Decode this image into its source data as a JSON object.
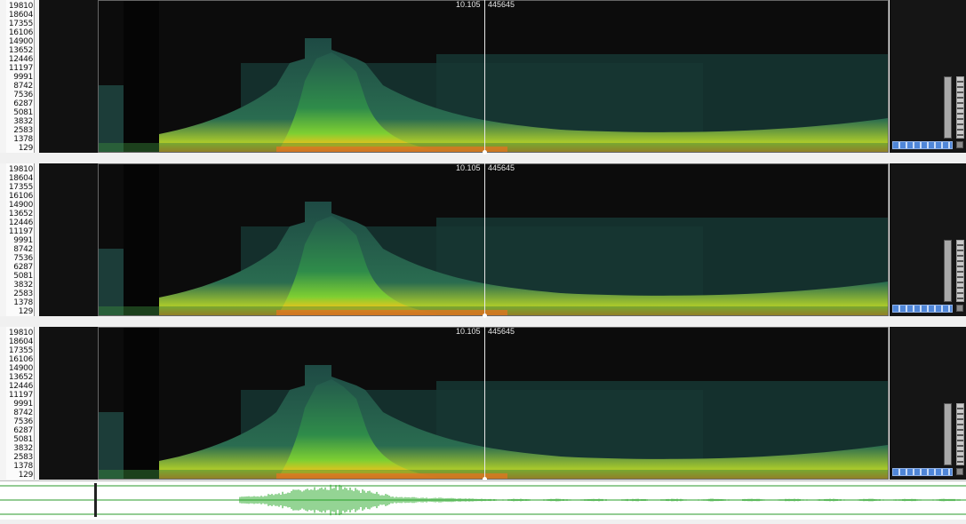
{
  "tracks": [
    {
      "freq_ticks": [
        "19810",
        "18604",
        "17355",
        "16106",
        "14900",
        "13652",
        "12446",
        "11197",
        "9991",
        "8742",
        "7536",
        "6287",
        "5081",
        "3832",
        "2583",
        "1378",
        "129"
      ],
      "time_readout": "10.105",
      "sample_readout": "445645"
    },
    {
      "freq_ticks": [
        "19810",
        "18604",
        "17355",
        "16106",
        "14900",
        "13652",
        "12446",
        "11197",
        "9991",
        "8742",
        "7536",
        "6287",
        "5081",
        "3832",
        "2583",
        "1378",
        "129"
      ],
      "time_readout": "10.105",
      "sample_readout": "445645"
    },
    {
      "freq_ticks": [
        "19810",
        "18604",
        "17355",
        "16106",
        "14900",
        "13652",
        "12446",
        "11197",
        "9991",
        "8742",
        "7536",
        "6287",
        "5081",
        "3832",
        "2583",
        "1378",
        "129"
      ],
      "time_readout": "10.105",
      "sample_readout": "445645"
    }
  ],
  "colors": {
    "spectrogram_bg": "#0e0e0e",
    "band_low": "#1f4a45",
    "band_mid": "#3aa84a",
    "band_high": "#e85a14",
    "waveform": "#28a828"
  },
  "icons": [
    "gain-slider-icon",
    "level-meter-icon",
    "zoom-scrollbar-icon",
    "options-square-icon"
  ]
}
